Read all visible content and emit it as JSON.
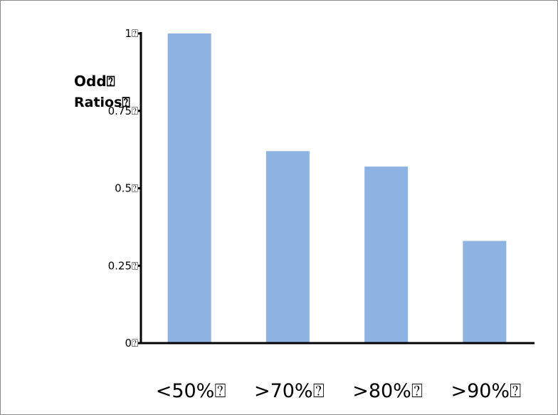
{
  "chart_data": {
    "type": "bar",
    "ylabel_lines": [
      "Odd⍰",
      "Ratios⍰"
    ],
    "categories": [
      "<50%⍰",
      ">70%⍰",
      ">80%⍰",
      ">90%⍰"
    ],
    "values": [
      1.0,
      0.62,
      0.57,
      0.33
    ],
    "yticks": [
      0,
      0.25,
      0.5,
      0.75,
      1
    ],
    "ytick_labels": [
      "0⍰",
      "0.25⍰",
      "0.5⍰",
      "0.75⍰",
      "1⍰"
    ],
    "ylim": [
      0,
      1
    ],
    "grid": false,
    "legend": "none",
    "colors": {
      "bar": "#8db3e2",
      "axis": "#000000"
    }
  }
}
